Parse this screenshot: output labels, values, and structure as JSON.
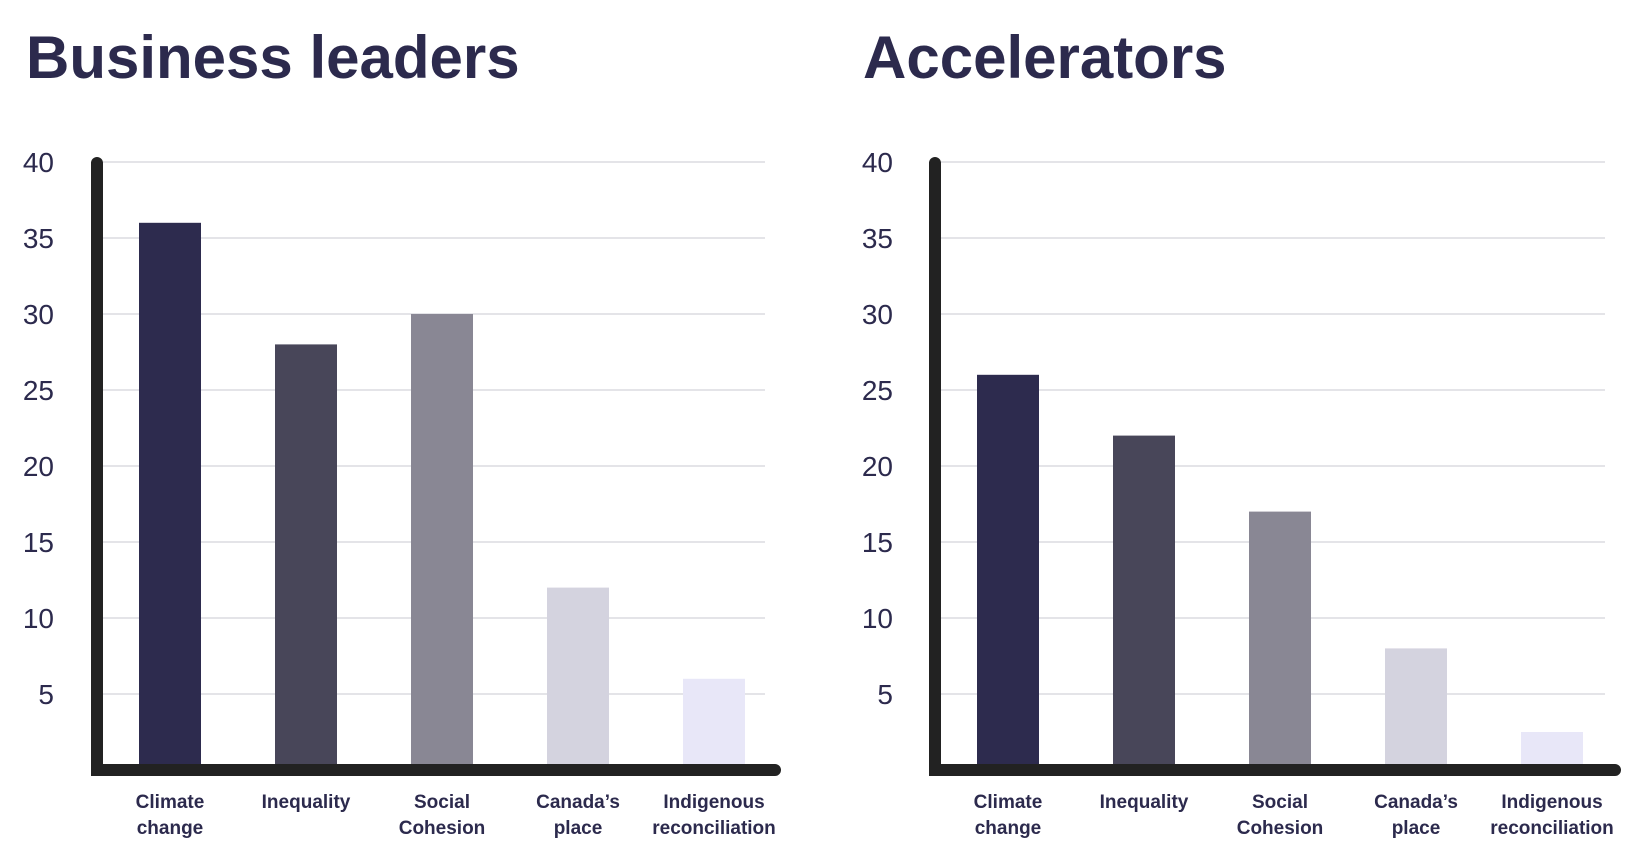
{
  "chart_data": [
    {
      "type": "bar",
      "title": "Business leaders",
      "xlabel": "",
      "ylabel": "",
      "ylim": [
        0,
        40
      ],
      "yticks": [
        5,
        10,
        15,
        20,
        25,
        30,
        35,
        40
      ],
      "categories": [
        [
          "Climate",
          "change"
        ],
        [
          "Inequality"
        ],
        [
          "Social",
          "Cohesion"
        ],
        [
          "Canada’s",
          "place"
        ],
        [
          "Indigenous",
          "reconciliation"
        ]
      ],
      "values": [
        36,
        28,
        30,
        12,
        6
      ],
      "colors": [
        "#2d2b4e",
        "#484659",
        "#898794",
        "#d4d3df",
        "#e8e7f8"
      ],
      "grid": true,
      "legend": "none"
    },
    {
      "type": "bar",
      "title": "Accelerators",
      "xlabel": "",
      "ylabel": "",
      "ylim": [
        0,
        40
      ],
      "yticks": [
        5,
        10,
        15,
        20,
        25,
        30,
        35,
        40
      ],
      "categories": [
        [
          "Climate",
          "change"
        ],
        [
          "Inequality"
        ],
        [
          "Social",
          "Cohesion"
        ],
        [
          "Canada’s",
          "place"
        ],
        [
          "Indigenous",
          "reconciliation"
        ]
      ],
      "values": [
        26,
        22,
        17,
        8,
        2.5
      ],
      "colors": [
        "#2d2b4e",
        "#484659",
        "#898794",
        "#d4d3df",
        "#e8e7f8"
      ],
      "grid": true,
      "legend": "none"
    }
  ]
}
